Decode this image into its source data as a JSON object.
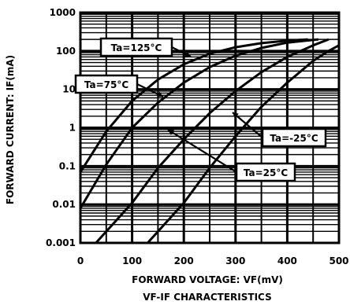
{
  "chart_data": {
    "type": "line",
    "title": "VF-IF CHARACTERISTICS",
    "xlabel": "FORWARD VOLTAGE: VF(mV)",
    "ylabel": "FORWARD CURRENT: IF(mA)",
    "xlim": [
      0,
      500
    ],
    "ylim": [
      0.001,
      1000
    ],
    "yscale": "log",
    "grid": true,
    "x_ticks": [
      "0",
      "100",
      "200",
      "300",
      "400",
      "500"
    ],
    "y_ticks": [
      "0.001",
      "0.01",
      "0.1",
      "1",
      "10",
      "100",
      "1000"
    ],
    "series": [
      {
        "name": "Ta=125°C",
        "points": [
          [
            0,
            0.07
          ],
          [
            50,
            0.8
          ],
          [
            100,
            5
          ],
          [
            150,
            18
          ],
          [
            200,
            45
          ],
          [
            250,
            85
          ],
          [
            300,
            125
          ],
          [
            350,
            160
          ],
          [
            400,
            185
          ],
          [
            440,
            200
          ]
        ]
      },
      {
        "name": "Ta=75°C",
        "points": [
          [
            0,
            0.008
          ],
          [
            50,
            0.11
          ],
          [
            100,
            1
          ],
          [
            150,
            4.5
          ],
          [
            200,
            15
          ],
          [
            250,
            38
          ],
          [
            300,
            75
          ],
          [
            350,
            120
          ],
          [
            400,
            165
          ],
          [
            460,
            200
          ]
        ]
      },
      {
        "name": "Ta=25°C",
        "points": [
          [
            30,
            0.001
          ],
          [
            100,
            0.011
          ],
          [
            150,
            0.09
          ],
          [
            200,
            0.5
          ],
          [
            250,
            2.4
          ],
          [
            300,
            9
          ],
          [
            350,
            28
          ],
          [
            400,
            70
          ],
          [
            450,
            140
          ],
          [
            480,
            200
          ]
        ]
      },
      {
        "name": "Ta=-25°C",
        "points": [
          [
            130,
            0.001
          ],
          [
            200,
            0.011
          ],
          [
            250,
            0.09
          ],
          [
            300,
            0.6
          ],
          [
            350,
            3.5
          ],
          [
            400,
            15
          ],
          [
            450,
            55
          ],
          [
            480,
            100
          ],
          [
            500,
            140
          ]
        ]
      }
    ],
    "annotations": [
      "Ta=125°C",
      "Ta=75°C",
      "Ta=25°C",
      "Ta=-25°C"
    ]
  }
}
